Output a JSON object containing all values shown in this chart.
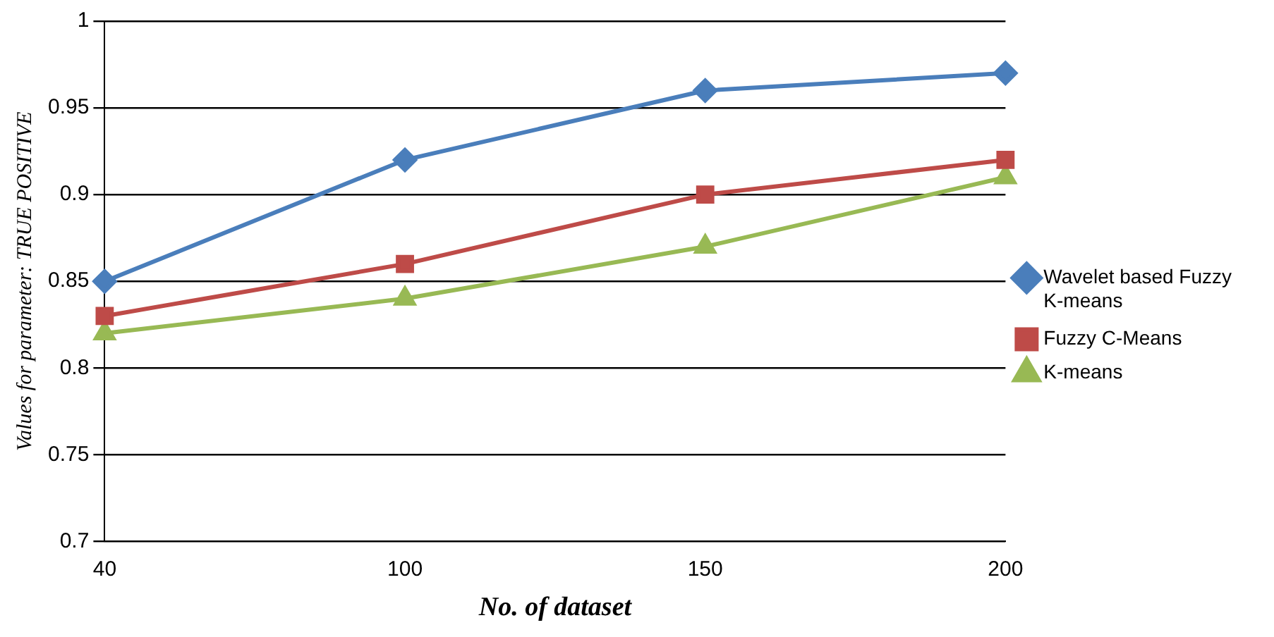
{
  "chart_data": {
    "type": "line",
    "xlabel": "No. of dataset",
    "ylabel": "Values for parameter: TRUE POSITIVE",
    "categories": [
      "40",
      "100",
      "150",
      "200"
    ],
    "series": [
      {
        "name": "Wavelet based Fuzzy K-means",
        "color": "#4a7ebb",
        "marker": "diamond",
        "values": [
          0.85,
          0.92,
          0.96,
          0.97
        ]
      },
      {
        "name": "Fuzzy C-Means",
        "color": "#be4b48",
        "marker": "square",
        "values": [
          0.83,
          0.86,
          0.9,
          0.92
        ]
      },
      {
        "name": "K-means",
        "color": "#98b954",
        "marker": "triangle",
        "values": [
          0.82,
          0.84,
          0.87,
          0.91
        ]
      }
    ],
    "ylim": [
      0.7,
      1
    ],
    "yticks": [
      0.7,
      0.75,
      0.8,
      0.85,
      0.9,
      0.95,
      1
    ],
    "grid": "y",
    "legend": "right",
    "line_style": "solid"
  }
}
